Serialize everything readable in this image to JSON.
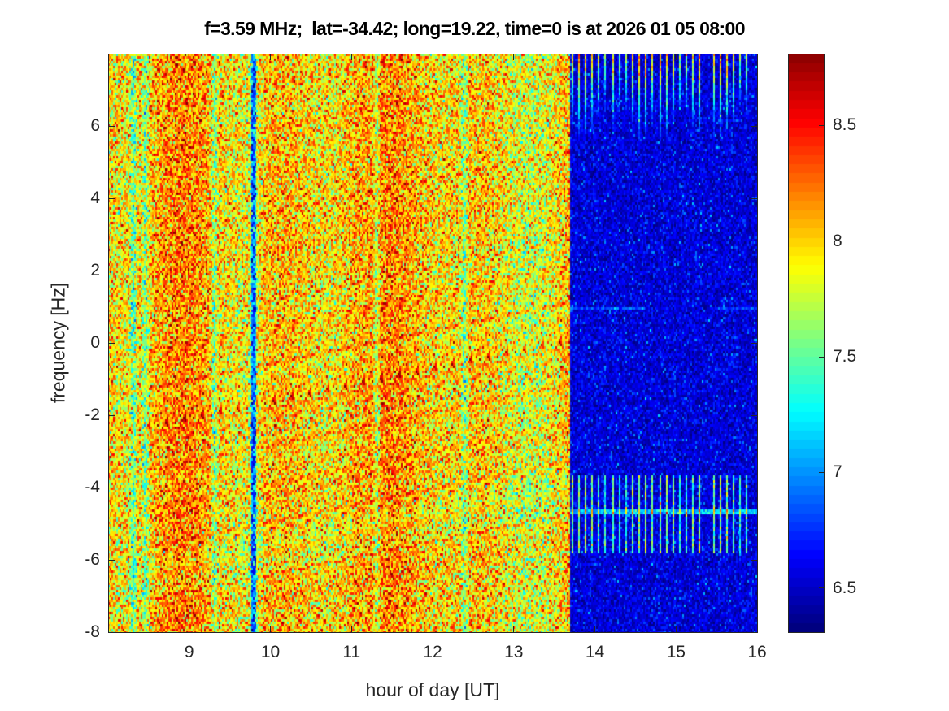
{
  "chart_data": {
    "type": "heatmap",
    "title": "f=3.59 MHz;  lat=-34.42; long=19.22, time=0 is at 2026 01 05 08:00",
    "xlabel": "hour of day [UT]",
    "ylabel": "frequency [Hz]",
    "xlim": [
      8,
      16
    ],
    "ylim": [
      -8,
      8
    ],
    "xticks": [
      9,
      10,
      11,
      12,
      13,
      14,
      15,
      16
    ],
    "xtick_labels": [
      "9",
      "10",
      "11",
      "12",
      "13",
      "14",
      "15",
      "16"
    ],
    "yticks": [
      -8,
      -6,
      -4,
      -2,
      0,
      2,
      4,
      6
    ],
    "ytick_labels": [
      "-8",
      "-6",
      "-4",
      "-2",
      "0",
      "2",
      "4",
      "6"
    ],
    "colormap": "jet",
    "clim": [
      6.31,
      8.81
    ],
    "colorbar_ticks": [
      6.5,
      7,
      7.5,
      8,
      8.5
    ],
    "colorbar_tick_labels": [
      "6.5",
      "7",
      "7.5",
      "8",
      "8.5"
    ],
    "colorbar_location": "right",
    "regions": [
      {
        "x_range": [
          8,
          13.68
        ],
        "mean_level": 8.0,
        "spread": 0.3
      },
      {
        "x_range": [
          13.68,
          16
        ],
        "mean_level": 6.55,
        "spread": 0.12
      }
    ],
    "low_level_streaks_hours": [
      8.3,
      8.45,
      9.3,
      9.78,
      11.3,
      12.38
    ],
    "periodic_lines": {
      "x_range": [
        13.7,
        16
      ],
      "period_hours": 0.083,
      "freq_bands_hz": [
        [
          5.5,
          8
        ],
        [
          -5.8,
          -3.6
        ]
      ],
      "peak_level": 8.3
    },
    "horizontal_lines_hz": [
      -4.65,
      1.0
    ]
  }
}
